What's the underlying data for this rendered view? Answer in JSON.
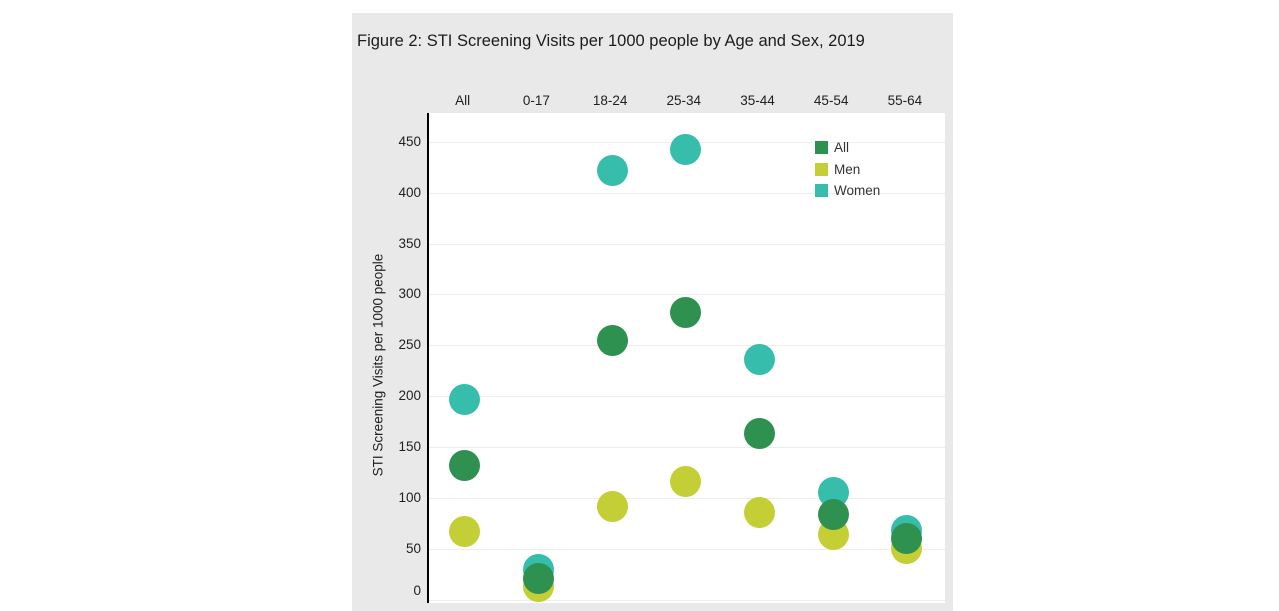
{
  "page": {
    "background": "#ffffff"
  },
  "card": {
    "background": "#e9e9e9"
  },
  "chart_data": {
    "type": "scatter",
    "title": "Figure 2: STI Screening Visits per 1000 people by Age and Sex, 2019",
    "ylabel": "STI Screening Visits per 1000 people",
    "categories": [
      "All",
      "0-17",
      "18-24",
      "25-34",
      "35-44",
      "45-54",
      "55-64"
    ],
    "series": [
      {
        "name": "All",
        "color": "#2e9150",
        "values": [
          132,
          21,
          255,
          282,
          163,
          84,
          60
        ]
      },
      {
        "name": "Men",
        "color": "#c3cf35",
        "values": [
          67,
          13,
          92,
          116,
          86,
          64,
          51
        ]
      },
      {
        "name": "Women",
        "color": "#36bdac",
        "values": [
          197,
          30,
          422,
          442,
          236,
          106,
          68
        ]
      }
    ],
    "yticks": [
      0,
      50,
      100,
      150,
      200,
      250,
      300,
      350,
      400,
      450
    ],
    "ylim": [
      0,
      479
    ],
    "grid": true,
    "legend_position": "top-right-inside",
    "draw_order": [
      "Women",
      "Men",
      "All"
    ],
    "axis_color": "#000000",
    "gridline_color": "#ededed"
  }
}
